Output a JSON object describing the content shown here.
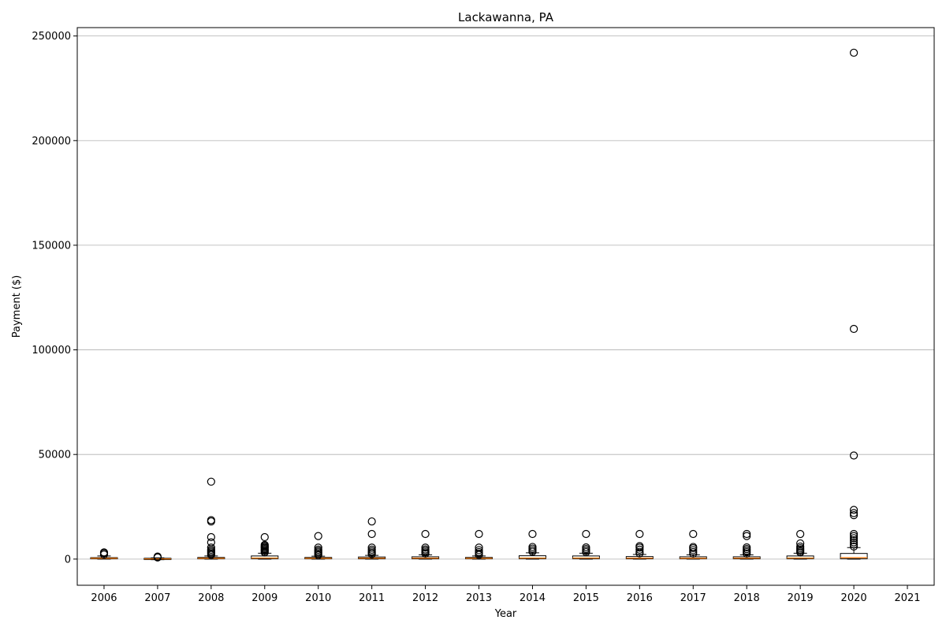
{
  "chart_data": {
    "type": "box",
    "title": "Lackawanna, PA",
    "xlabel": "Year",
    "ylabel": "Payment ($)",
    "categories": [
      "2006",
      "2007",
      "2008",
      "2009",
      "2010",
      "2011",
      "2012",
      "2013",
      "2014",
      "2015",
      "2016",
      "2017",
      "2018",
      "2019",
      "2020",
      "2021"
    ],
    "ylim": [
      -12500,
      254000
    ],
    "yticks": [
      0,
      50000,
      100000,
      150000,
      200000,
      250000
    ],
    "ytick_labels": [
      "0",
      "50000",
      "100000",
      "150000",
      "200000",
      "250000"
    ],
    "grid": "y",
    "colors": {
      "box": "#000000",
      "median": "#ff7f0e",
      "grid": "#b0b0b0"
    },
    "boxes": [
      {
        "year": "2006",
        "q1": 150,
        "median": 400,
        "q3": 700,
        "whisker_low": 0,
        "whisker_high": 1500,
        "outliers": [
          2200,
          2800,
          3200
        ]
      },
      {
        "year": "2007",
        "q1": -200,
        "median": 100,
        "q3": 400,
        "whisker_low": -300,
        "whisker_high": 600,
        "outliers": [
          800,
          1200
        ]
      },
      {
        "year": "2008",
        "q1": 150,
        "median": 400,
        "q3": 800,
        "whisker_low": 0,
        "whisker_high": 1500,
        "outliers": [
          2000,
          2600,
          3200,
          3800,
          4500,
          5500,
          8000,
          10500,
          18000,
          18600,
          37000
        ]
      },
      {
        "year": "2009",
        "q1": 200,
        "median": 500,
        "q3": 1500,
        "whisker_low": 0,
        "whisker_high": 2800,
        "outliers": [
          3200,
          3800,
          4300,
          4800,
          5300,
          5800,
          6300,
          6800,
          10500
        ]
      },
      {
        "year": "2010",
        "q1": 150,
        "median": 400,
        "q3": 800,
        "whisker_low": 0,
        "whisker_high": 1400,
        "outliers": [
          1900,
          2500,
          3200,
          3800,
          4500,
          5500,
          11000
        ]
      },
      {
        "year": "2011",
        "q1": 150,
        "median": 450,
        "q3": 1000,
        "whisker_low": 0,
        "whisker_high": 1800,
        "outliers": [
          2300,
          3000,
          3700,
          4500,
          5500,
          12000,
          18000
        ]
      },
      {
        "year": "2012",
        "q1": 150,
        "median": 450,
        "q3": 1100,
        "whisker_low": 0,
        "whisker_high": 2000,
        "outliers": [
          2600,
          3200,
          3900,
          4600,
          5500,
          12000
        ]
      },
      {
        "year": "2013",
        "q1": 150,
        "median": 400,
        "q3": 800,
        "whisker_low": 0,
        "whisker_high": 1500,
        "outliers": [
          2000,
          2700,
          3400,
          4300,
          5500,
          12000
        ]
      },
      {
        "year": "2014",
        "q1": 200,
        "median": 500,
        "q3": 1600,
        "whisker_low": 0,
        "whisker_high": 3000,
        "outliers": [
          3500,
          4200,
          5000,
          5800,
          12000
        ]
      },
      {
        "year": "2015",
        "q1": 200,
        "median": 500,
        "q3": 1500,
        "whisker_low": 0,
        "whisker_high": 2800,
        "outliers": [
          3300,
          4000,
          4800,
          5600,
          12000
        ]
      },
      {
        "year": "2016",
        "q1": 150,
        "median": 450,
        "q3": 1200,
        "whisker_low": 0,
        "whisker_high": 2200,
        "outliers": [
          2700,
          3500,
          4500,
          5500,
          6200,
          12000
        ]
      },
      {
        "year": "2017",
        "q1": 150,
        "median": 400,
        "q3": 1100,
        "whisker_low": 0,
        "whisker_high": 2000,
        "outliers": [
          2600,
          3400,
          4300,
          5200,
          5800,
          12000
        ]
      },
      {
        "year": "2018",
        "q1": 150,
        "median": 450,
        "q3": 1100,
        "whisker_low": 0,
        "whisker_high": 2000,
        "outliers": [
          2600,
          3300,
          4000,
          4800,
          5600,
          11000,
          12000
        ]
      },
      {
        "year": "2019",
        "q1": 200,
        "median": 500,
        "q3": 1500,
        "whisker_low": 0,
        "whisker_high": 2800,
        "outliers": [
          3200,
          3800,
          4500,
          5200,
          6000,
          7500,
          12000
        ]
      },
      {
        "year": "2020",
        "q1": 200,
        "median": 700,
        "q3": 2700,
        "whisker_low": 0,
        "whisker_high": 5500,
        "outliers": [
          6000,
          7000,
          8000,
          9000,
          10000,
          11000,
          12000,
          21000,
          22000,
          23500,
          49500,
          110000,
          242000
        ]
      },
      {
        "year": "2021",
        "q1": null,
        "median": null,
        "q3": null,
        "whisker_low": null,
        "whisker_high": null,
        "outliers": []
      }
    ]
  }
}
